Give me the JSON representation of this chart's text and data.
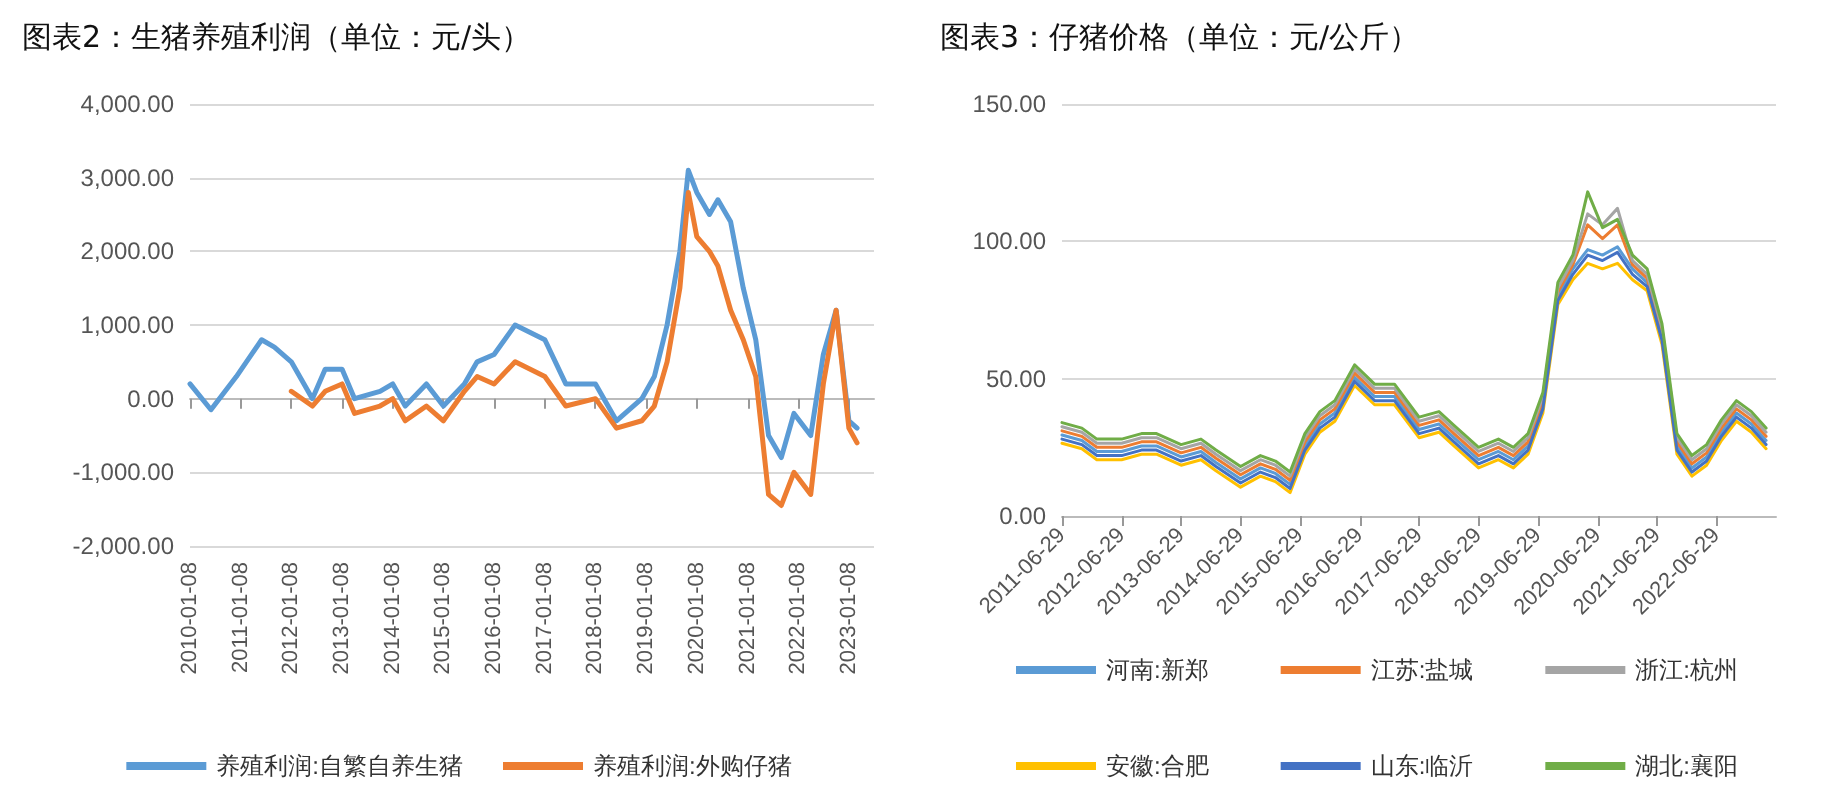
{
  "chart_data": [
    {
      "type": "line",
      "title": "图表2：生猪养殖利润（单位：元/头）",
      "x": [
        "2010-01-08",
        "2010-06-08",
        "2010-12-08",
        "2011-06-08",
        "2011-09-08",
        "2012-01-08",
        "2012-06-08",
        "2012-09-08",
        "2013-01-08",
        "2013-04-08",
        "2013-10-08",
        "2014-01-08",
        "2014-04-08",
        "2014-09-08",
        "2015-01-08",
        "2015-06-08",
        "2015-09-08",
        "2016-01-08",
        "2016-06-08",
        "2017-01-08",
        "2017-06-08",
        "2018-01-08",
        "2018-06-08",
        "2018-12-08",
        "2019-03-08",
        "2019-06-08",
        "2019-09-08",
        "2019-11-08",
        "2020-01-08",
        "2020-04-08",
        "2020-06-08",
        "2020-09-08",
        "2020-12-08",
        "2021-03-08",
        "2021-06-08",
        "2021-09-08",
        "2021-12-08",
        "2022-04-08",
        "2022-07-08",
        "2022-10-08",
        "2023-01-08",
        "2023-03-08"
      ],
      "series": [
        {
          "name": "养殖利润:自繁自养生猪",
          "color": "#5b9bd5",
          "values": [
            200,
            -150,
            300,
            800,
            700,
            500,
            0,
            400,
            400,
            0,
            100,
            200,
            -100,
            200,
            -100,
            200,
            500,
            600,
            1000,
            800,
            200,
            200,
            -300,
            0,
            300,
            1000,
            2000,
            3100,
            2800,
            2500,
            2700,
            2400,
            1500,
            800,
            -500,
            -800,
            -200,
            -500,
            600,
            1200,
            -300,
            -400
          ]
        },
        {
          "name": "养殖利润:外购仔猪",
          "color": "#ed7d31",
          "values": [
            null,
            null,
            null,
            null,
            null,
            100,
            -100,
            100,
            200,
            -200,
            -100,
            0,
            -300,
            -100,
            -300,
            100,
            300,
            200,
            500,
            300,
            -100,
            0,
            -400,
            -300,
            -100,
            500,
            1500,
            2800,
            2200,
            2000,
            1800,
            1200,
            800,
            300,
            -1300,
            -1450,
            -1000,
            -1300,
            200,
            1200,
            -400,
            -600
          ]
        }
      ],
      "xlim": [
        "2010-01-08",
        "2023-07-08"
      ],
      "xticks": [
        "2010-01-08",
        "2011-01-08",
        "2012-01-08",
        "2013-01-08",
        "2014-01-08",
        "2015-01-08",
        "2016-01-08",
        "2017-01-08",
        "2018-01-08",
        "2019-01-08",
        "2020-01-08",
        "2021-01-08",
        "2022-01-08",
        "2023-01-08"
      ],
      "ylim": [
        -2000,
        4000
      ],
      "yticks": [
        {
          "value": -2000,
          "label": "-2,000.00"
        },
        {
          "value": -1000,
          "label": "-1,000.00"
        },
        {
          "value": 0,
          "label": "0.00"
        },
        {
          "value": 1000,
          "label": "1,000.00"
        },
        {
          "value": 2000,
          "label": "2,000.00"
        },
        {
          "value": 3000,
          "label": "3,000.00"
        },
        {
          "value": 4000,
          "label": "4,000.00"
        }
      ],
      "grid": "y",
      "legend": "bottom",
      "marker": "none",
      "line_style": "solid"
    },
    {
      "type": "line",
      "title": "图表3：仔猪价格（单位：元/公斤）",
      "x": [
        "2011-06-29",
        "2011-10-29",
        "2012-01-29",
        "2012-06-29",
        "2012-10-29",
        "2013-01-29",
        "2013-06-29",
        "2013-10-29",
        "2014-01-29",
        "2014-06-29",
        "2014-10-29",
        "2015-01-29",
        "2015-04-29",
        "2015-07-29",
        "2015-10-29",
        "2016-01-29",
        "2016-05-29",
        "2016-09-29",
        "2017-01-29",
        "2017-06-29",
        "2017-10-29",
        "2018-01-29",
        "2018-06-29",
        "2018-10-29",
        "2019-01-29",
        "2019-04-29",
        "2019-07-29",
        "2019-10-29",
        "2020-01-29",
        "2020-04-29",
        "2020-07-29",
        "2020-10-29",
        "2021-01-29",
        "2021-04-29",
        "2021-07-29",
        "2021-10-29",
        "2022-01-29",
        "2022-04-29",
        "2022-07-29",
        "2022-10-29",
        "2023-01-29",
        "2023-04-29"
      ],
      "series": [
        {
          "name": "河南:新郑",
          "color": "#5b9bd5",
          "values": [
            29.5,
            27.5,
            23.5,
            23.5,
            25.5,
            25.5,
            21.5,
            23.5,
            19.5,
            13.5,
            17.5,
            15.5,
            11.5,
            25.5,
            33.5,
            37.5,
            50.5,
            43.5,
            43.5,
            31.5,
            33.5,
            28.5,
            20.5,
            23.5,
            20.5,
            25.5,
            40.5,
            80,
            90,
            97,
            95,
            98,
            90,
            85,
            65.5,
            25.5,
            17.5,
            21.5,
            30.5,
            37.5,
            33.5,
            27.5
          ]
        },
        {
          "name": "江苏:盐城",
          "color": "#ed7d31",
          "values": [
            31,
            29,
            25,
            25,
            27,
            27,
            23,
            25,
            21,
            15,
            19,
            17,
            13,
            27,
            35,
            39,
            52,
            45,
            45,
            33,
            35,
            30,
            22,
            25,
            22,
            27,
            42,
            81.5,
            91.5,
            106,
            101,
            106,
            91.5,
            86.5,
            67,
            27,
            19,
            23,
            32,
            39,
            35,
            29
          ]
        },
        {
          "name": "浙江:杭州",
          "color": "#a5a5a5",
          "values": [
            32.5,
            30.5,
            26.5,
            26.5,
            28.5,
            28.5,
            24.5,
            26.5,
            22.5,
            16.5,
            20.5,
            18.5,
            14.5,
            28.5,
            36.5,
            40.5,
            53.5,
            46.5,
            46.5,
            34.5,
            36.5,
            31.5,
            23.5,
            26.5,
            23.5,
            28.5,
            43.5,
            83,
            93,
            110,
            106,
            112,
            93,
            88,
            68.5,
            28.5,
            20.5,
            24.5,
            33.5,
            40.5,
            36.5,
            30.5
          ]
        },
        {
          "name": "安徽:合肥",
          "color": "#ffc000",
          "values": [
            26.5,
            24.5,
            20.5,
            20.5,
            22.5,
            22.5,
            18.5,
            20.5,
            16.5,
            10.5,
            14.5,
            12.5,
            8.5,
            22.5,
            30.5,
            34.5,
            47.5,
            40.5,
            40.5,
            28.5,
            30.5,
            25.5,
            17.5,
            20.5,
            17.5,
            22.5,
            37.5,
            77,
            86,
            92,
            90,
            92,
            86,
            82,
            62.5,
            22.5,
            14.5,
            18.5,
            27.5,
            34.5,
            30.5,
            24.5
          ]
        },
        {
          "name": "山东:临沂",
          "color": "#4472c4",
          "values": [
            28,
            26,
            22,
            22,
            24,
            24,
            20,
            22,
            18,
            12,
            16,
            14,
            10,
            24,
            32,
            36,
            49,
            42,
            42,
            30,
            32,
            27,
            19,
            22,
            19,
            24,
            39,
            78.5,
            88,
            95,
            93,
            96,
            88,
            83.5,
            64,
            24,
            16,
            20,
            29,
            36,
            32,
            26
          ]
        },
        {
          "name": "湖北:襄阳",
          "color": "#70ad47",
          "values": [
            34,
            32,
            28,
            28,
            30,
            30,
            26,
            28,
            24,
            18,
            22,
            20,
            16,
            30,
            38,
            42,
            55,
            48,
            48,
            36,
            38,
            33,
            25,
            28,
            25,
            30,
            45,
            85,
            95,
            118,
            105,
            108,
            95,
            90,
            70,
            30,
            22,
            26,
            35,
            42,
            38,
            32
          ]
        }
      ],
      "xlim": [
        "2011-06-29",
        "2023-06-29"
      ],
      "xticks": [
        "2011-06-29",
        "2012-06-29",
        "2013-06-29",
        "2014-06-29",
        "2015-06-29",
        "2016-06-29",
        "2017-06-29",
        "2018-06-29",
        "2019-06-29",
        "2020-06-29",
        "2021-06-29",
        "2022-06-29"
      ],
      "ylim": [
        0,
        150
      ],
      "yticks": [
        {
          "value": 0,
          "label": "0.00"
        },
        {
          "value": 50,
          "label": "50.00"
        },
        {
          "value": 100,
          "label": "100.00"
        },
        {
          "value": 150,
          "label": "150.00"
        }
      ],
      "grid": "y",
      "legend": "bottom",
      "marker": "none",
      "line_style": "solid"
    }
  ]
}
